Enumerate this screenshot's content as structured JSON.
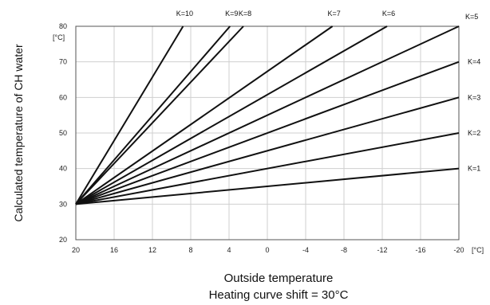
{
  "chart_data": {
    "type": "line",
    "ylabel": "Calculated temperature of CH water",
    "ylabel_unit": "[°C]",
    "xlabel": "Outside temperature",
    "xlabel_unit": "[°C]",
    "subtitle": "Heating curve shift = 30°C",
    "xlim": [
      20,
      -20
    ],
    "ylim": [
      20,
      80
    ],
    "x_ticks": [
      20,
      16,
      12,
      8,
      4,
      0,
      -4,
      -8,
      -12,
      -16,
      -20
    ],
    "x_tick_labels": [
      "20",
      "16",
      "12",
      "8",
      "4",
      "0",
      "-4",
      "-8",
      "-12",
      "-16",
      "-20"
    ],
    "y_ticks": [
      20,
      30,
      40,
      50,
      60,
      70,
      80
    ],
    "y_tick_labels": [
      "20",
      "30",
      "40",
      "50",
      "60",
      "70",
      "80"
    ],
    "grid": true,
    "series": [
      {
        "name": "K=1",
        "x": [
          20,
          -20
        ],
        "y": [
          30,
          40
        ]
      },
      {
        "name": "K=2",
        "x": [
          20,
          -20
        ],
        "y": [
          30,
          50
        ]
      },
      {
        "name": "K=3",
        "x": [
          20,
          -20
        ],
        "y": [
          30,
          60
        ]
      },
      {
        "name": "K=4",
        "x": [
          20,
          -20
        ],
        "y": [
          30,
          70
        ]
      },
      {
        "name": "K=5",
        "x": [
          20,
          -20
        ],
        "y": [
          30,
          80
        ]
      },
      {
        "name": "K=6",
        "x": [
          20,
          -12.5
        ],
        "y": [
          30,
          80
        ]
      },
      {
        "name": "K=7",
        "x": [
          20,
          -6.8
        ],
        "y": [
          30,
          80
        ]
      },
      {
        "name": "K=8",
        "x": [
          20,
          2.5
        ],
        "y": [
          30,
          80
        ]
      },
      {
        "name": "K=9",
        "x": [
          20,
          3.9
        ],
        "y": [
          30,
          80
        ]
      },
      {
        "name": "K=10",
        "x": [
          20,
          8.8
        ],
        "y": [
          30,
          80
        ]
      }
    ]
  }
}
